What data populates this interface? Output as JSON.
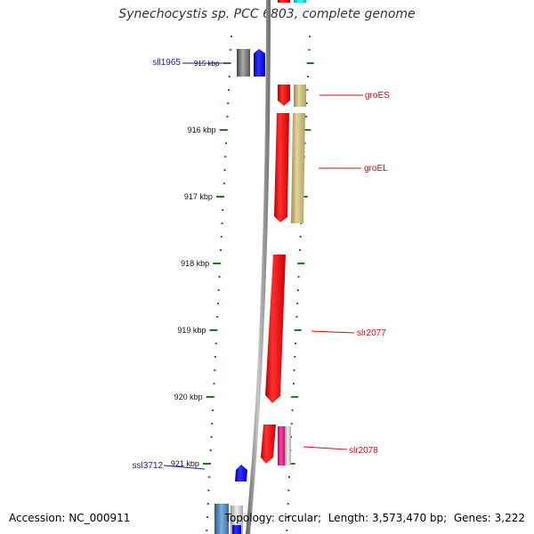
{
  "title": "Synechocystis sp. PCC 6803, complete genome",
  "footer": {
    "accession_label": "Accession:",
    "accession": "NC_000911",
    "topology_label": "Topology:",
    "topology": "circular",
    "length_label": "Length:",
    "length": "3,573,470 bp",
    "genes_label": "Genes:",
    "genes": "3,222"
  },
  "scale_unit": "kbp",
  "ticks": [
    {
      "value": 915,
      "label": "915 kbp"
    },
    {
      "value": 916,
      "label": "916 kbp"
    },
    {
      "value": 917,
      "label": "917 kbp"
    },
    {
      "value": 918,
      "label": "918 kbp"
    },
    {
      "value": 919,
      "label": "919 kbp"
    },
    {
      "value": 920,
      "label": "920 kbp"
    },
    {
      "value": 921,
      "label": "921 kbp"
    }
  ],
  "genes_list": [
    {
      "name": "sll1965",
      "strand": "minus",
      "start_kbp": 914.85,
      "end_kbp": 915.05,
      "color": "#1010ee",
      "labeled": true,
      "label_color": "#1a1aa8"
    },
    {
      "name": "",
      "strand": "minus",
      "start_kbp": 914.85,
      "end_kbp": 915.05,
      "color": "#666666",
      "labeled": false
    },
    {
      "name": "groES",
      "strand": "plus",
      "start_kbp": 915.3,
      "end_kbp": 915.62,
      "color": "#ee1111",
      "labeled": true,
      "label_color": "#cc1111"
    },
    {
      "name": "groEL",
      "strand": "plus",
      "start_kbp": 915.65,
      "end_kbp": 917.3,
      "color": "#ee1111",
      "labeled": true,
      "label_color": "#cc1111"
    },
    {
      "name": "slr2077",
      "strand": "plus",
      "start_kbp": 917.88,
      "end_kbp": 920.1,
      "color": "#ee1111",
      "labeled": true,
      "label_color": "#cc1111"
    },
    {
      "name": "slr2078",
      "strand": "plus",
      "start_kbp": 920.45,
      "end_kbp": 921.0,
      "color": "#ee1111",
      "labeled": true,
      "label_color": "#cc1111"
    },
    {
      "name": "ssl3712",
      "strand": "minus",
      "start_kbp": 921.05,
      "end_kbp": 921.25,
      "color": "#1010ee",
      "labeled": true,
      "label_color": "#1a1aa8"
    }
  ],
  "colors": {
    "backbone": "#8a8a8a",
    "tick": "#1f7a1f",
    "plus_gene": "#ee1111",
    "minus_gene": "#1010ee",
    "plus_feature": "#c8b878",
    "minus_feature": "#777777",
    "pink_feature": "#e0208a",
    "cyan_feature": "#10d0d0"
  }
}
